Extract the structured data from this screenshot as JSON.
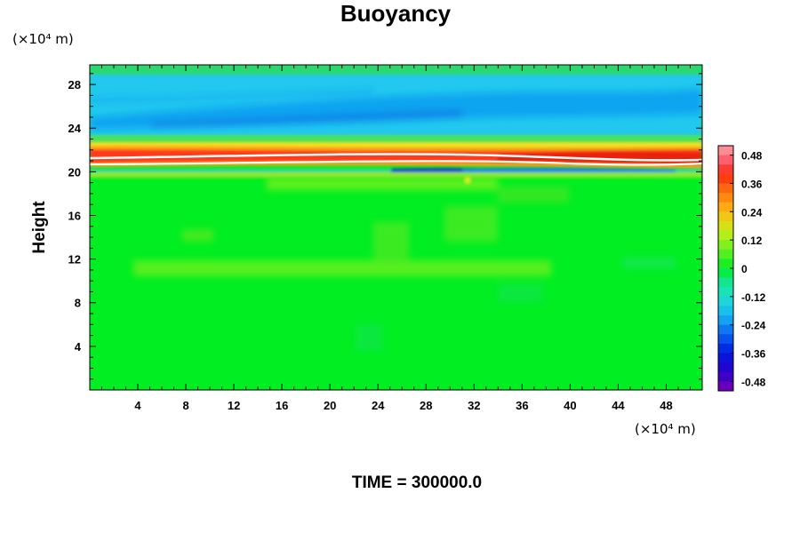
{
  "chart_data": {
    "type": "heatmap",
    "title": "Buoyancy",
    "ylabel": "Height",
    "x_unit": "(×10⁴ m)",
    "y_unit": "(×10⁴ m)",
    "x_ticks": [
      "4",
      "8",
      "12",
      "16",
      "20",
      "24",
      "28",
      "32",
      "36",
      "40",
      "44",
      "48"
    ],
    "y_ticks": [
      "4",
      "8",
      "12",
      "16",
      "20",
      "24",
      "28"
    ],
    "xlim": [
      0,
      51
    ],
    "ylim": [
      0,
      29.8
    ],
    "colorbar_ticks": [
      "0.48",
      "0.36",
      "0.24",
      "0.12",
      "0",
      "-0.12",
      "-0.24",
      "-0.36",
      "-0.48"
    ],
    "colorbar_range": [
      -0.52,
      0.52
    ],
    "colors": {
      "background_field": "#00ee22",
      "upper_layer": "#22c8ee",
      "upper_band": "#0aa4f0",
      "warm_band": "#ff3a1a",
      "cold_band": "#1a30d8"
    },
    "footer": "TIME = 300000.0"
  }
}
